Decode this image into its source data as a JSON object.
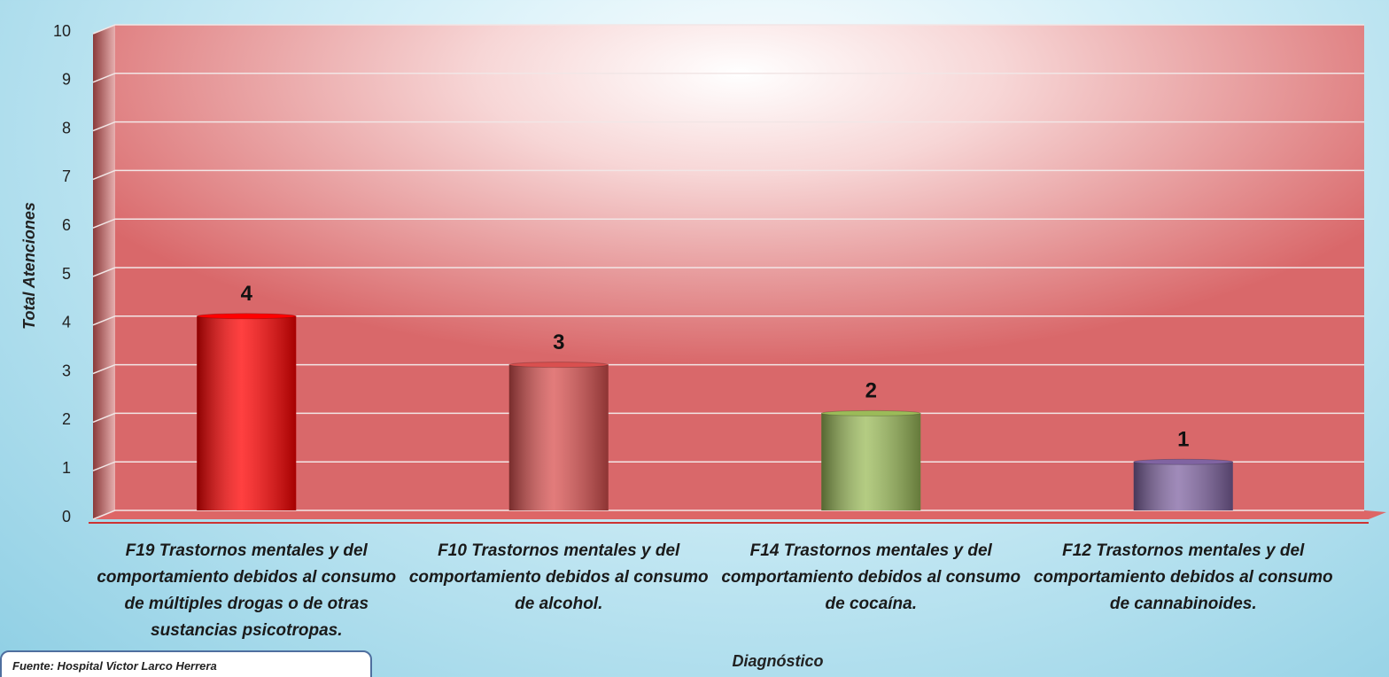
{
  "chart_data": {
    "type": "bar",
    "y_label": "Total Atenciones",
    "x_label": "Diagnóstico",
    "source": "Fuente: Hospital Victor Larco Herrera",
    "categories": [
      "F19 Trastornos mentales y del comportamiento debidos al consumo de múltiples drogas o de otras sustancias psicotropas.",
      "F10 Trastornos mentales y del comportamiento debidos al consumo de alcohol.",
      "F14 Trastornos mentales y del comportamiento debidos al consumo de cocaína.",
      "F12 Trastornos mentales y del comportamiento debidos al consumo de cannabinoides."
    ],
    "values": [
      4,
      3,
      2,
      1
    ],
    "colors": [
      "#ff0000",
      "#d9504f",
      "#9bbb59",
      "#8064a2"
    ],
    "ylim": [
      0,
      10
    ],
    "yticks": [
      0,
      1,
      2,
      3,
      4,
      5,
      6,
      7,
      8,
      9,
      10
    ],
    "grid": true
  }
}
